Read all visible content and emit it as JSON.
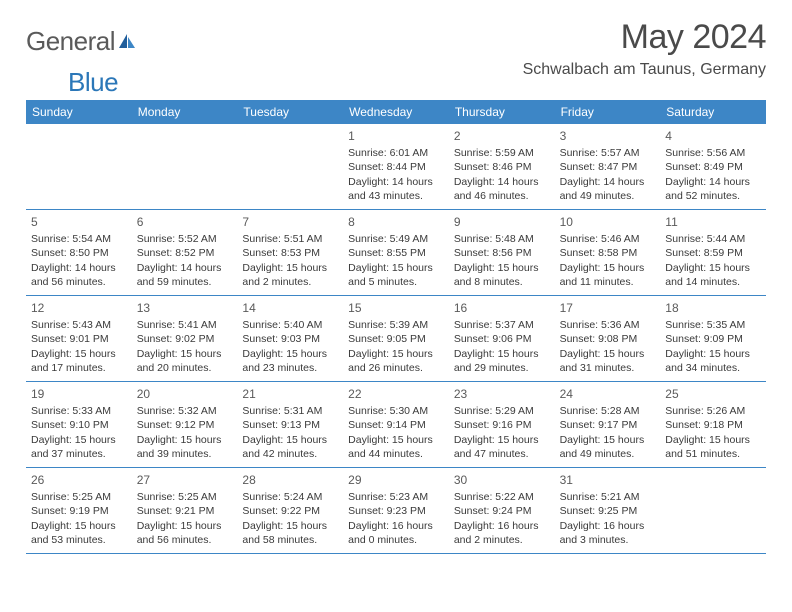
{
  "brand": {
    "part1": "General",
    "part2": "Blue"
  },
  "title": "May 2024",
  "location": "Schwalbach am Taunus, Germany",
  "colors": {
    "accent": "#3d86c6",
    "brandBlue": "#2b77b8",
    "text": "#3a3a3a"
  },
  "weekdays": [
    "Sunday",
    "Monday",
    "Tuesday",
    "Wednesday",
    "Thursday",
    "Friday",
    "Saturday"
  ],
  "weeks": [
    [
      null,
      null,
      null,
      {
        "n": "1",
        "sr": "6:01 AM",
        "ss": "8:44 PM",
        "dl": "14 hours and 43 minutes."
      },
      {
        "n": "2",
        "sr": "5:59 AM",
        "ss": "8:46 PM",
        "dl": "14 hours and 46 minutes."
      },
      {
        "n": "3",
        "sr": "5:57 AM",
        "ss": "8:47 PM",
        "dl": "14 hours and 49 minutes."
      },
      {
        "n": "4",
        "sr": "5:56 AM",
        "ss": "8:49 PM",
        "dl": "14 hours and 52 minutes."
      }
    ],
    [
      {
        "n": "5",
        "sr": "5:54 AM",
        "ss": "8:50 PM",
        "dl": "14 hours and 56 minutes."
      },
      {
        "n": "6",
        "sr": "5:52 AM",
        "ss": "8:52 PM",
        "dl": "14 hours and 59 minutes."
      },
      {
        "n": "7",
        "sr": "5:51 AM",
        "ss": "8:53 PM",
        "dl": "15 hours and 2 minutes."
      },
      {
        "n": "8",
        "sr": "5:49 AM",
        "ss": "8:55 PM",
        "dl": "15 hours and 5 minutes."
      },
      {
        "n": "9",
        "sr": "5:48 AM",
        "ss": "8:56 PM",
        "dl": "15 hours and 8 minutes."
      },
      {
        "n": "10",
        "sr": "5:46 AM",
        "ss": "8:58 PM",
        "dl": "15 hours and 11 minutes."
      },
      {
        "n": "11",
        "sr": "5:44 AM",
        "ss": "8:59 PM",
        "dl": "15 hours and 14 minutes."
      }
    ],
    [
      {
        "n": "12",
        "sr": "5:43 AM",
        "ss": "9:01 PM",
        "dl": "15 hours and 17 minutes."
      },
      {
        "n": "13",
        "sr": "5:41 AM",
        "ss": "9:02 PM",
        "dl": "15 hours and 20 minutes."
      },
      {
        "n": "14",
        "sr": "5:40 AM",
        "ss": "9:03 PM",
        "dl": "15 hours and 23 minutes."
      },
      {
        "n": "15",
        "sr": "5:39 AM",
        "ss": "9:05 PM",
        "dl": "15 hours and 26 minutes."
      },
      {
        "n": "16",
        "sr": "5:37 AM",
        "ss": "9:06 PM",
        "dl": "15 hours and 29 minutes."
      },
      {
        "n": "17",
        "sr": "5:36 AM",
        "ss": "9:08 PM",
        "dl": "15 hours and 31 minutes."
      },
      {
        "n": "18",
        "sr": "5:35 AM",
        "ss": "9:09 PM",
        "dl": "15 hours and 34 minutes."
      }
    ],
    [
      {
        "n": "19",
        "sr": "5:33 AM",
        "ss": "9:10 PM",
        "dl": "15 hours and 37 minutes."
      },
      {
        "n": "20",
        "sr": "5:32 AM",
        "ss": "9:12 PM",
        "dl": "15 hours and 39 minutes."
      },
      {
        "n": "21",
        "sr": "5:31 AM",
        "ss": "9:13 PM",
        "dl": "15 hours and 42 minutes."
      },
      {
        "n": "22",
        "sr": "5:30 AM",
        "ss": "9:14 PM",
        "dl": "15 hours and 44 minutes."
      },
      {
        "n": "23",
        "sr": "5:29 AM",
        "ss": "9:16 PM",
        "dl": "15 hours and 47 minutes."
      },
      {
        "n": "24",
        "sr": "5:28 AM",
        "ss": "9:17 PM",
        "dl": "15 hours and 49 minutes."
      },
      {
        "n": "25",
        "sr": "5:26 AM",
        "ss": "9:18 PM",
        "dl": "15 hours and 51 minutes."
      }
    ],
    [
      {
        "n": "26",
        "sr": "5:25 AM",
        "ss": "9:19 PM",
        "dl": "15 hours and 53 minutes."
      },
      {
        "n": "27",
        "sr": "5:25 AM",
        "ss": "9:21 PM",
        "dl": "15 hours and 56 minutes."
      },
      {
        "n": "28",
        "sr": "5:24 AM",
        "ss": "9:22 PM",
        "dl": "15 hours and 58 minutes."
      },
      {
        "n": "29",
        "sr": "5:23 AM",
        "ss": "9:23 PM",
        "dl": "16 hours and 0 minutes."
      },
      {
        "n": "30",
        "sr": "5:22 AM",
        "ss": "9:24 PM",
        "dl": "16 hours and 2 minutes."
      },
      {
        "n": "31",
        "sr": "5:21 AM",
        "ss": "9:25 PM",
        "dl": "16 hours and 3 minutes."
      },
      null
    ]
  ],
  "labels": {
    "sunrise": "Sunrise:",
    "sunset": "Sunset:",
    "daylight": "Daylight:"
  }
}
